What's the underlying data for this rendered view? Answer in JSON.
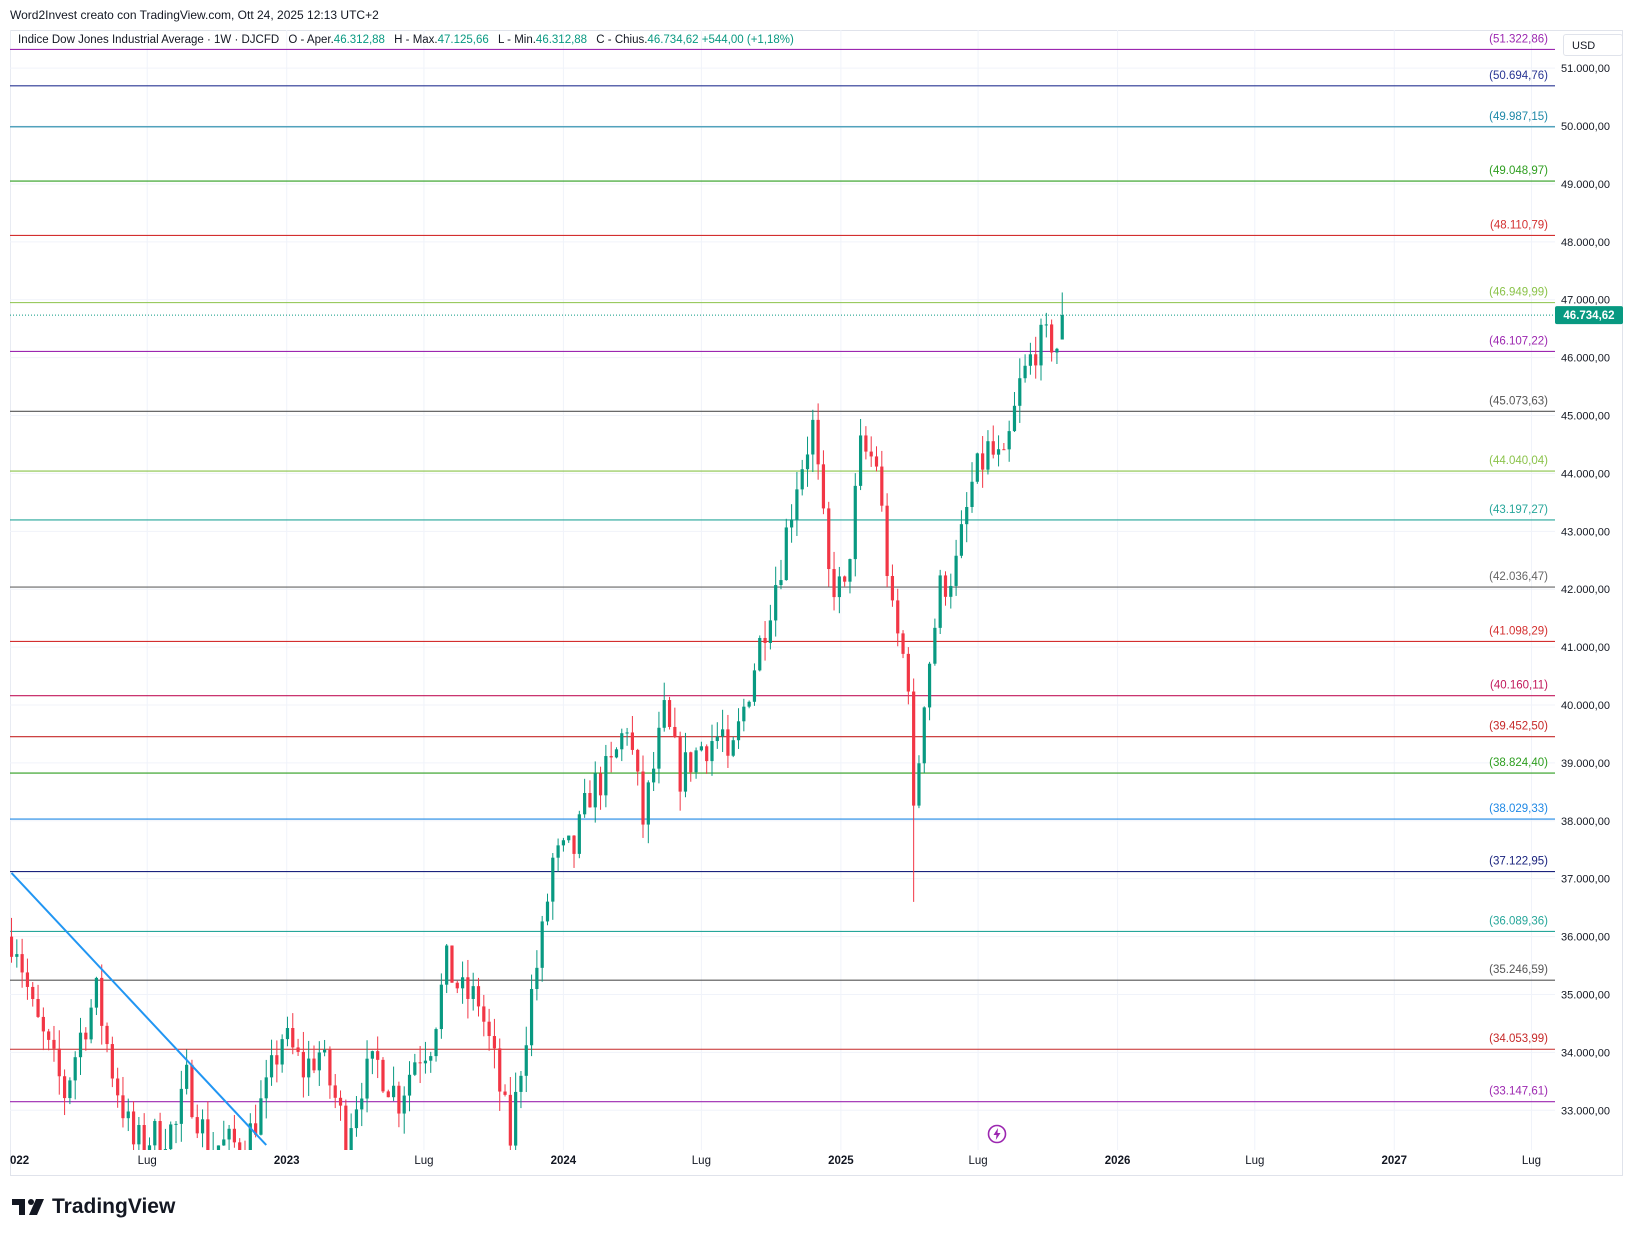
{
  "header": {
    "credit": "Word2Invest creato con TradingView.com, Ott 24, 2025 12:13 UTC+2"
  },
  "legend": {
    "title": "Indice Dow Jones Industrial Average · 1W · DJCFD",
    "open_label": "O - Aper.",
    "open_value": "46.312,88",
    "high_label": "H - Max.",
    "high_value": "47.125,66",
    "low_label": "L - Min.",
    "low_value": "46.312,88",
    "close_label": "C - Chius.",
    "close_value": "46.734,62",
    "change": "+544,00 (+1,18%)"
  },
  "currency_button": "USD",
  "brand": {
    "name": "TradingView",
    "icon": "tradingview-logo-icon"
  },
  "flash_icon": "lightning-icon",
  "colors": {
    "up": "#089981",
    "down": "#f23645",
    "price_tag": "#089981",
    "trendline": "#2196f3"
  },
  "chart_data": {
    "type": "candlestick",
    "timeframe": "1W",
    "symbol": "DJCFD",
    "currency": "USD",
    "y_range": [
      32400,
      51400
    ],
    "x_range": [
      "2022-01",
      "2027-08"
    ],
    "x_ticks": [
      {
        "date": "2022-01",
        "label": "022"
      },
      {
        "date": "2022-07",
        "label": "Lug"
      },
      {
        "date": "2023-01",
        "label": "2023"
      },
      {
        "date": "2023-07",
        "label": "Lug"
      },
      {
        "date": "2024-01",
        "label": "2024"
      },
      {
        "date": "2024-07",
        "label": "Lug"
      },
      {
        "date": "2025-01",
        "label": "2025"
      },
      {
        "date": "2025-07",
        "label": "Lug"
      },
      {
        "date": "2026-01",
        "label": "2026"
      },
      {
        "date": "2026-07",
        "label": "Lug"
      },
      {
        "date": "2027-01",
        "label": "2027"
      },
      {
        "date": "2027-07",
        "label": "Lug"
      }
    ],
    "y_ticks": [
      {
        "value": 33000,
        "label": "33.000,00"
      },
      {
        "value": 34000,
        "label": "34.000,00"
      },
      {
        "value": 35000,
        "label": "35.000,00"
      },
      {
        "value": 36000,
        "label": "36.000,00"
      },
      {
        "value": 37000,
        "label": "37.000,00"
      },
      {
        "value": 38000,
        "label": "38.000,00"
      },
      {
        "value": 39000,
        "label": "39.000,00"
      },
      {
        "value": 40000,
        "label": "40.000,00"
      },
      {
        "value": 41000,
        "label": "41.000,00"
      },
      {
        "value": 42000,
        "label": "42.000,00"
      },
      {
        "value": 43000,
        "label": "43.000,00"
      },
      {
        "value": 44000,
        "label": "44.000,00"
      },
      {
        "value": 45000,
        "label": "45.000,00"
      },
      {
        "value": 46000,
        "label": "46.000,00"
      },
      {
        "value": 47000,
        "label": "47.000,00"
      },
      {
        "value": 48000,
        "label": "48.000,00"
      },
      {
        "value": 49000,
        "label": "49.000,00"
      },
      {
        "value": 50000,
        "label": "50.000,00"
      },
      {
        "value": 51000,
        "label": "51.000,00"
      }
    ],
    "last_price": {
      "value": 46734.62,
      "label": "46.734,62"
    },
    "levels": [
      {
        "value": 51322.86,
        "label": "(51.322,86)",
        "color": "#9c27b0"
      },
      {
        "value": 50694.76,
        "label": "(50.694,76)",
        "color": "#283593"
      },
      {
        "value": 49987.15,
        "label": "(49.987,15)",
        "color": "#1e88a8"
      },
      {
        "value": 49048.97,
        "label": "(49.048,97)",
        "color": "#2e9e1f"
      },
      {
        "value": 48110.79,
        "label": "(48.110,79)",
        "color": "#d32f2f"
      },
      {
        "value": 46949.99,
        "label": "(46.949,99)",
        "color": "#8bc34a"
      },
      {
        "value": 46107.22,
        "label": "(46.107,22)",
        "color": "#9c27b0"
      },
      {
        "value": 45073.63,
        "label": "(45.073,63)",
        "color": "#555555"
      },
      {
        "value": 44040.04,
        "label": "(44.040,04)",
        "color": "#8bc34a"
      },
      {
        "value": 43197.27,
        "label": "(43.197,27)",
        "color": "#26a69a"
      },
      {
        "value": 42036.47,
        "label": "(42.036,47)",
        "color": "#666666"
      },
      {
        "value": 41098.29,
        "label": "(41.098,29)",
        "color": "#d32f2f"
      },
      {
        "value": 40160.11,
        "label": "(40.160,11)",
        "color": "#c2185b"
      },
      {
        "value": 39452.5,
        "label": "(39.452,50)",
        "color": "#c62828"
      },
      {
        "value": 38824.4,
        "label": "(38.824,40)",
        "color": "#2e9e1f"
      },
      {
        "value": 38029.33,
        "label": "(38.029,33)",
        "color": "#1e88e5"
      },
      {
        "value": 37122.95,
        "label": "(37.122,95)",
        "color": "#1a237e"
      },
      {
        "value": 36089.36,
        "label": "(36.089,36)",
        "color": "#26a69a"
      },
      {
        "value": 35246.59,
        "label": "(35.246,59)",
        "color": "#555555"
      },
      {
        "value": 34053.99,
        "label": "(34.053,99)",
        "color": "#c62828"
      },
      {
        "value": 33147.61,
        "label": "(33.147,61)",
        "color": "#9c27b0"
      }
    ],
    "trendline": {
      "from": {
        "date": "2022-01-03",
        "value": 37100
      },
      "to": {
        "date": "2022-12-05",
        "value": 32400
      }
    },
    "anchors": [
      {
        "date": "2022-01-03",
        "value": 36000
      },
      {
        "date": "2022-01-10",
        "value": 35900
      },
      {
        "date": "2022-01-31",
        "value": 34700
      },
      {
        "date": "2022-02-21",
        "value": 34000
      },
      {
        "date": "2022-03-14",
        "value": 33300
      },
      {
        "date": "2022-04-04",
        "value": 34300
      },
      {
        "date": "2022-04-25",
        "value": 35000
      },
      {
        "date": "2022-05-16",
        "value": 33700
      },
      {
        "date": "2022-06-13",
        "value": 32400
      },
      {
        "date": "2022-08-08",
        "value": 32700
      },
      {
        "date": "2022-08-22",
        "value": 33500
      },
      {
        "date": "2022-09-19",
        "value": 32400
      },
      {
        "date": "2022-11-07",
        "value": 32400
      },
      {
        "date": "2022-12-05",
        "value": 33300
      },
      {
        "date": "2022-12-26",
        "value": 34300
      },
      {
        "date": "2023-01-23",
        "value": 33700
      },
      {
        "date": "2023-02-13",
        "value": 34000
      },
      {
        "date": "2023-03-06",
        "value": 33200
      },
      {
        "date": "2023-03-20",
        "value": 32600
      },
      {
        "date": "2023-04-10",
        "value": 33500
      },
      {
        "date": "2023-05-01",
        "value": 33800
      },
      {
        "date": "2023-05-29",
        "value": 33200
      },
      {
        "date": "2023-06-19",
        "value": 33900
      },
      {
        "date": "2023-07-10",
        "value": 34200
      },
      {
        "date": "2023-07-31",
        "value": 35500
      },
      {
        "date": "2023-08-21",
        "value": 35000
      },
      {
        "date": "2023-09-11",
        "value": 34900
      },
      {
        "date": "2023-10-02",
        "value": 33800
      },
      {
        "date": "2023-10-23",
        "value": 32500
      },
      {
        "date": "2023-11-06",
        "value": 33800
      },
      {
        "date": "2023-11-20",
        "value": 35000
      },
      {
        "date": "2023-12-04",
        "value": 36000
      },
      {
        "date": "2023-12-18",
        "value": 37300
      },
      {
        "date": "2024-01-15",
        "value": 37500
      },
      {
        "date": "2024-02-05",
        "value": 38500
      },
      {
        "date": "2024-03-04",
        "value": 38900
      },
      {
        "date": "2024-03-25",
        "value": 39700
      },
      {
        "date": "2024-04-15",
        "value": 38000
      },
      {
        "date": "2024-05-13",
        "value": 39800
      },
      {
        "date": "2024-06-03",
        "value": 38800
      },
      {
        "date": "2024-07-01",
        "value": 39300
      },
      {
        "date": "2024-07-29",
        "value": 39500
      },
      {
        "date": "2024-08-05",
        "value": 38800
      },
      {
        "date": "2024-09-09",
        "value": 40700
      },
      {
        "date": "2024-10-14",
        "value": 42500
      },
      {
        "date": "2024-11-04",
        "value": 43900
      },
      {
        "date": "2024-11-25",
        "value": 44800
      },
      {
        "date": "2024-12-16",
        "value": 42200
      },
      {
        "date": "2025-01-06",
        "value": 41900
      },
      {
        "date": "2025-01-27",
        "value": 44400
      },
      {
        "date": "2025-02-17",
        "value": 44200
      },
      {
        "date": "2025-03-10",
        "value": 41500
      },
      {
        "date": "2025-03-31",
        "value": 40500
      },
      {
        "date": "2025-04-07",
        "value": 38000
      },
      {
        "date": "2025-04-21",
        "value": 40200
      },
      {
        "date": "2025-05-12",
        "value": 42000
      },
      {
        "date": "2025-06-02",
        "value": 42400
      },
      {
        "date": "2025-06-23",
        "value": 43800
      },
      {
        "date": "2025-07-14",
        "value": 44400
      },
      {
        "date": "2025-08-04",
        "value": 44100
      },
      {
        "date": "2025-08-25",
        "value": 45500
      },
      {
        "date": "2025-09-15",
        "value": 46200
      },
      {
        "date": "2025-10-06",
        "value": 46300
      },
      {
        "date": "2025-10-13",
        "value": 46200
      },
      {
        "date": "2025-10-20",
        "value": 46735
      }
    ]
  }
}
